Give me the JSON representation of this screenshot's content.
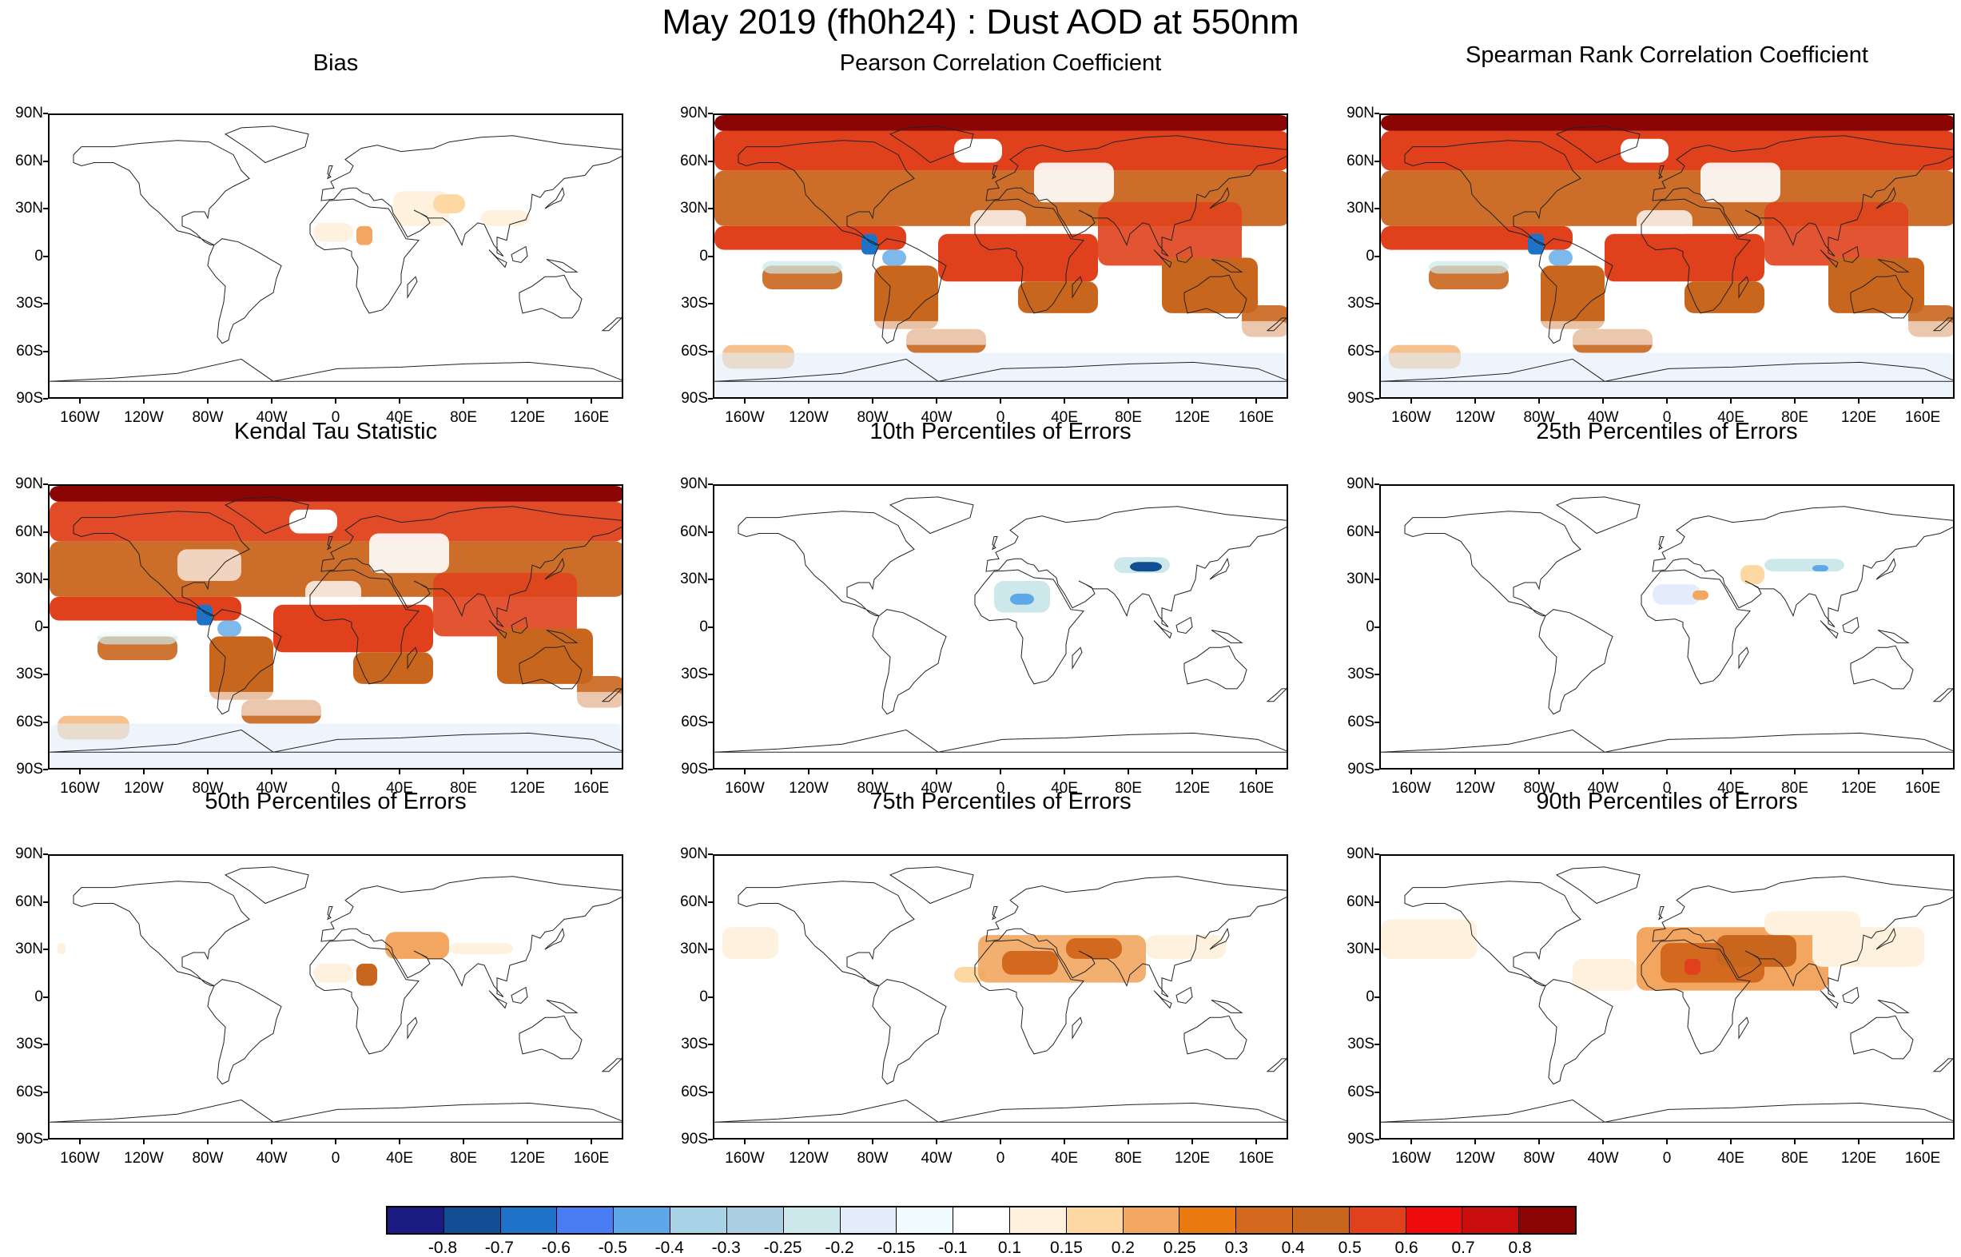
{
  "title": "May 2019 (fh0h24) : Dust AOD at 550nm",
  "lat_labels": [
    "90N",
    "60N",
    "30N",
    "0",
    "30S",
    "60S",
    "90S"
  ],
  "lon_labels": [
    "160W",
    "120W",
    "80W",
    "40W",
    "0",
    "40E",
    "80E",
    "120E",
    "160E"
  ],
  "panels": [
    {
      "title": "Bias",
      "field": "bias"
    },
    {
      "title": "Pearson Correlation Coefficient",
      "field": "correlation-strong"
    },
    {
      "title": "Spearman Rank Correlation Coefficient",
      "field": "correlation-strong"
    },
    {
      "title": "Kendal Tau Statistic",
      "field": "correlation-moderate"
    },
    {
      "title": "10th Percentiles of Errors",
      "field": "p10"
    },
    {
      "title": "25th Percentiles of Errors",
      "field": "p25"
    },
    {
      "title": "50th Percentiles of Errors",
      "field": "p50"
    },
    {
      "title": "75th Percentiles of Errors",
      "field": "p75"
    },
    {
      "title": "90th Percentiles of Errors",
      "field": "p90"
    }
  ],
  "colorbar": {
    "colors": [
      "#1a1a80",
      "#134d94",
      "#1e73c8",
      "#4a7cf5",
      "#5ea7e8",
      "#a8d3e6",
      "#a9cfe0",
      "#cde8ea",
      "#e3ecfa",
      "#f0fcff",
      "#ffffff",
      "#fef1de",
      "#fdd8a3",
      "#f2a65f",
      "#e97a12",
      "#d2691e",
      "#c9661e",
      "#e0411c",
      "#ee0b0b",
      "#c90d0d",
      "#8b0505"
    ],
    "labels": [
      "-0.8",
      "-0.7",
      "-0.6",
      "-0.5",
      "-0.4",
      "-0.3",
      "-0.25",
      "-0.2",
      "-0.15",
      "-0.1",
      "0.1",
      "0.15",
      "0.2",
      "0.25",
      "0.3",
      "0.4",
      "0.5",
      "0.6",
      "0.7",
      "0.8"
    ]
  }
}
